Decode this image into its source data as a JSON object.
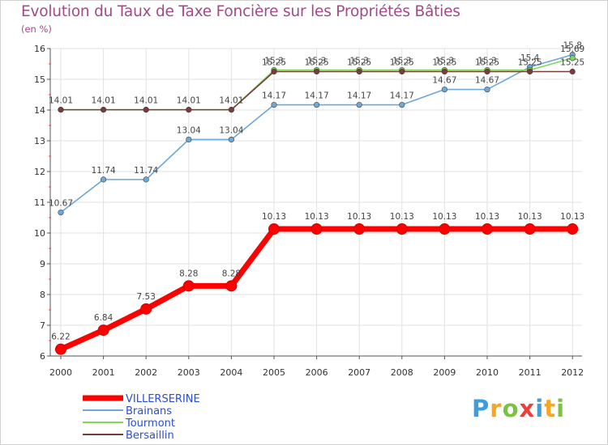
{
  "chart_data": {
    "type": "line",
    "title": "Evolution du Taux de Taxe Foncière sur les Propriétés Bâties",
    "unit_label": "(en %)",
    "xlabel": "",
    "ylabel": "",
    "categories": [
      "2000",
      "2001",
      "2002",
      "2003",
      "2004",
      "2005",
      "2006",
      "2007",
      "2008",
      "2009",
      "2010",
      "2011",
      "2012"
    ],
    "ylim": [
      6,
      16
    ],
    "yticks": [
      6,
      7,
      8,
      9,
      10,
      11,
      12,
      13,
      14,
      15,
      16
    ],
    "series": [
      {
        "name": "VILLERSERINE",
        "color": "#ff0000",
        "values": [
          6.22,
          6.84,
          7.53,
          8.28,
          8.28,
          10.13,
          10.13,
          10.13,
          10.13,
          10.13,
          10.13,
          10.13,
          10.13
        ],
        "labels": [
          "6.22",
          "6.84",
          "7.53",
          "8.28",
          "8.28",
          "10.13",
          "10.13",
          "10.13",
          "10.13",
          "10.13",
          "10.13",
          "10.13",
          "10.13"
        ]
      },
      {
        "name": "Brainans",
        "color": "#6fa8d6",
        "values": [
          10.67,
          11.74,
          11.74,
          13.04,
          13.04,
          14.17,
          14.17,
          14.17,
          14.17,
          14.67,
          14.67,
          15.4,
          15.8
        ],
        "labels": [
          "10.67",
          "11.74",
          "11.74",
          "13.04",
          "13.04",
          "14.17",
          "14.17",
          "14.17",
          "14.17",
          "14.67",
          "14.67",
          "15.4",
          "15.8"
        ]
      },
      {
        "name": "Tourmont",
        "color": "#7ed957",
        "values": [
          14.01,
          14.01,
          14.01,
          14.01,
          14.01,
          15.3,
          15.3,
          15.3,
          15.3,
          15.3,
          15.3,
          15.3,
          15.69
        ],
        "labels": [
          "",
          "",
          "",
          "",
          "",
          "15.3",
          "15.3",
          "15.3",
          "15.3",
          "15.3",
          "15.3",
          "",
          "15.69"
        ]
      },
      {
        "name": "Bersaillin",
        "color": "#7a3b3b",
        "values": [
          14.01,
          14.01,
          14.01,
          14.01,
          14.01,
          15.25,
          15.25,
          15.25,
          15.25,
          15.25,
          15.25,
          15.25,
          15.25
        ],
        "labels": [
          "14.01",
          "14.01",
          "14.01",
          "14.01",
          "14.01",
          "15.25",
          "15.25",
          "15.25",
          "15.25",
          "15.25",
          "15.25",
          "15.25",
          "15.25"
        ]
      }
    ],
    "legend_position": "bottom-left"
  },
  "logo": {
    "letters": [
      "P",
      "r",
      "o",
      "x",
      "i",
      "t",
      "i"
    ],
    "colors": [
      "#3d9de0",
      "#f5a623",
      "#7cc242",
      "#e8423b",
      "#3d9de0",
      "#f5a623",
      "#7cc242"
    ]
  }
}
